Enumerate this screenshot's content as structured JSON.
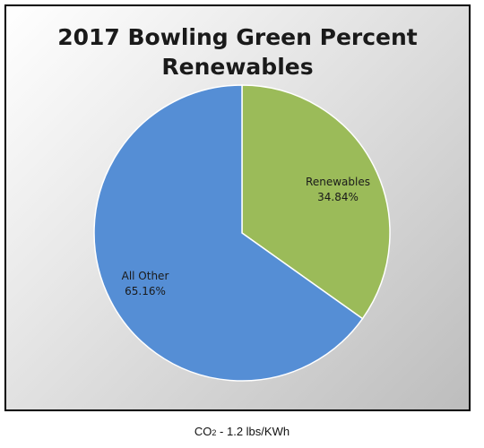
{
  "chart_data": {
    "type": "pie",
    "title_lines": [
      "2017 Bowling Green Percent",
      "Renewables"
    ],
    "slices": [
      {
        "label": "Renewables",
        "value": 34.84,
        "value_label": "34.84%",
        "color": "#9BBB59"
      },
      {
        "label": "All Other",
        "value": 65.16,
        "value_label": "65.16%",
        "color": "#558ED5"
      }
    ],
    "legend": "none"
  },
  "footnote": {
    "prefix": "CO",
    "subscript": "2",
    "suffix": " - 1.2 lbs/KWh"
  }
}
